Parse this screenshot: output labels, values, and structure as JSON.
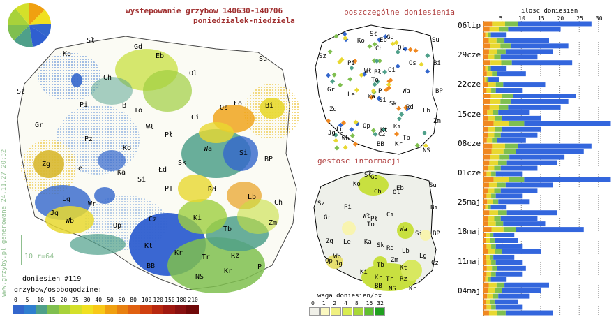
{
  "header": {
    "title_line1": "wystepowanie grzybow 140630-140706",
    "title_line2": "poniedzialek-niedziela"
  },
  "side_note": "www.grzyby.pl generowane 24.11.27 20:32",
  "main_map": {
    "regions": [
      "Sł",
      "Gd",
      "Eb",
      "Ko",
      "Ch",
      "Su",
      "Ol",
      "Sz",
      "Pi",
      "B",
      "To",
      "Ci",
      "Os",
      "Ło",
      "Bi",
      "Gr",
      "Wł",
      "Pł",
      "Pz",
      "Wa",
      "Si",
      "Ko",
      "Zg",
      "Le",
      "Ka",
      "Sk",
      "BP",
      "Łd",
      "Si",
      "PT",
      "Rd",
      "Lb",
      "Ch",
      "Lg",
      "Wr",
      "Jg",
      "Wb",
      "Op",
      "Ki",
      "Zm",
      "Cz",
      "Tb",
      "Kt",
      "Kr",
      "Tr",
      "Rz",
      "BB",
      "NS",
      "Kr",
      "P"
    ],
    "scale_label": "10 r=64",
    "reports_label": "doniesien #119",
    "legend_title": "grzybow/osobogodzine:",
    "legend_values": [
      "0",
      "5",
      "10",
      "15",
      "20",
      "25",
      "30",
      "40",
      "50",
      "60",
      "80",
      "100",
      "120",
      "150",
      "180",
      "210"
    ],
    "legend_colors": [
      "#3366cc",
      "#2f7fd0",
      "#4fa08a",
      "#7fbf4f",
      "#a8d23a",
      "#d4e02a",
      "#f0e020",
      "#f8c818",
      "#f0a010",
      "#e88010",
      "#e06010",
      "#d04010",
      "#b82810",
      "#a01810",
      "#881010",
      "#700808"
    ]
  },
  "reports_map": {
    "title": "poszczególne doniesienia",
    "regions": [
      "Sł",
      "Gd",
      "Eb",
      "Ko",
      "Ch",
      "Ol",
      "Su",
      "Sz",
      "Pi",
      "Wł",
      "Ci",
      "Os",
      "Bi",
      "Gr",
      "To",
      "Pł",
      "Wa",
      "BP",
      "Zg",
      "Le",
      "Ka",
      "Si",
      "Sk",
      "Rd",
      "Lb",
      "Lg",
      "Wb",
      "Jg",
      "Op",
      "Ki",
      "Zm",
      "Kt",
      "Cz",
      "Tb",
      "Kr",
      "BB",
      "NS",
      "P"
    ]
  },
  "density_map": {
    "title": "gestosc informacji",
    "regions": [
      "Gd",
      "Eb",
      "Sł",
      "Ko",
      "Ch",
      "Ol",
      "Su",
      "Sz",
      "Pi",
      "Wł",
      "Ci",
      "Bi",
      "Gr",
      "To",
      "Pł",
      "Wa",
      "Si",
      "BP",
      "Zg",
      "Le",
      "Ka",
      "Sk",
      "Rd",
      "Lb",
      "Lg",
      "Wb",
      "Jg",
      "Op",
      "Ki",
      "Zm",
      "Cz",
      "Tb",
      "Kt",
      "Kr",
      "Tr",
      "Rz",
      "BB",
      "NS",
      "Kr"
    ],
    "legend_title": "waga doniesien/px",
    "legend_values": [
      "0",
      "1",
      "2",
      "4",
      "8",
      "16",
      "32"
    ],
    "legend_colors": [
      "#f0f0e8",
      "#fbf8c0",
      "#f0f080",
      "#d8ec50",
      "#a8d838",
      "#60c030",
      "#20a020"
    ]
  },
  "timeline": {
    "axis_title": "ilosc doniesien",
    "ticks": [
      "5",
      "10",
      "15",
      "20",
      "25",
      "30"
    ],
    "day_labels": [
      "06lip",
      "29cze",
      "22cze",
      "15cze",
      "08cze",
      "01cze",
      "25maj",
      "18maj",
      "11maj",
      "04maj"
    ],
    "bar_values": [
      28,
      20,
      6,
      17,
      22,
      18,
      14,
      23,
      6,
      11,
      4,
      16,
      10,
      24,
      22,
      20,
      12,
      15,
      33,
      15,
      14,
      11,
      28,
      26,
      21,
      19,
      14,
      10,
      33,
      18,
      14,
      10,
      12,
      6,
      19,
      14,
      16,
      26,
      8,
      9,
      10,
      15,
      8,
      10,
      11,
      10,
      6,
      17,
      15,
      12,
      9,
      10,
      18
    ],
    "colors": {
      "blue": "#3366dd",
      "green": "#7fbf4f",
      "yellow": "#e8d830",
      "orange": "#f08820"
    }
  }
}
